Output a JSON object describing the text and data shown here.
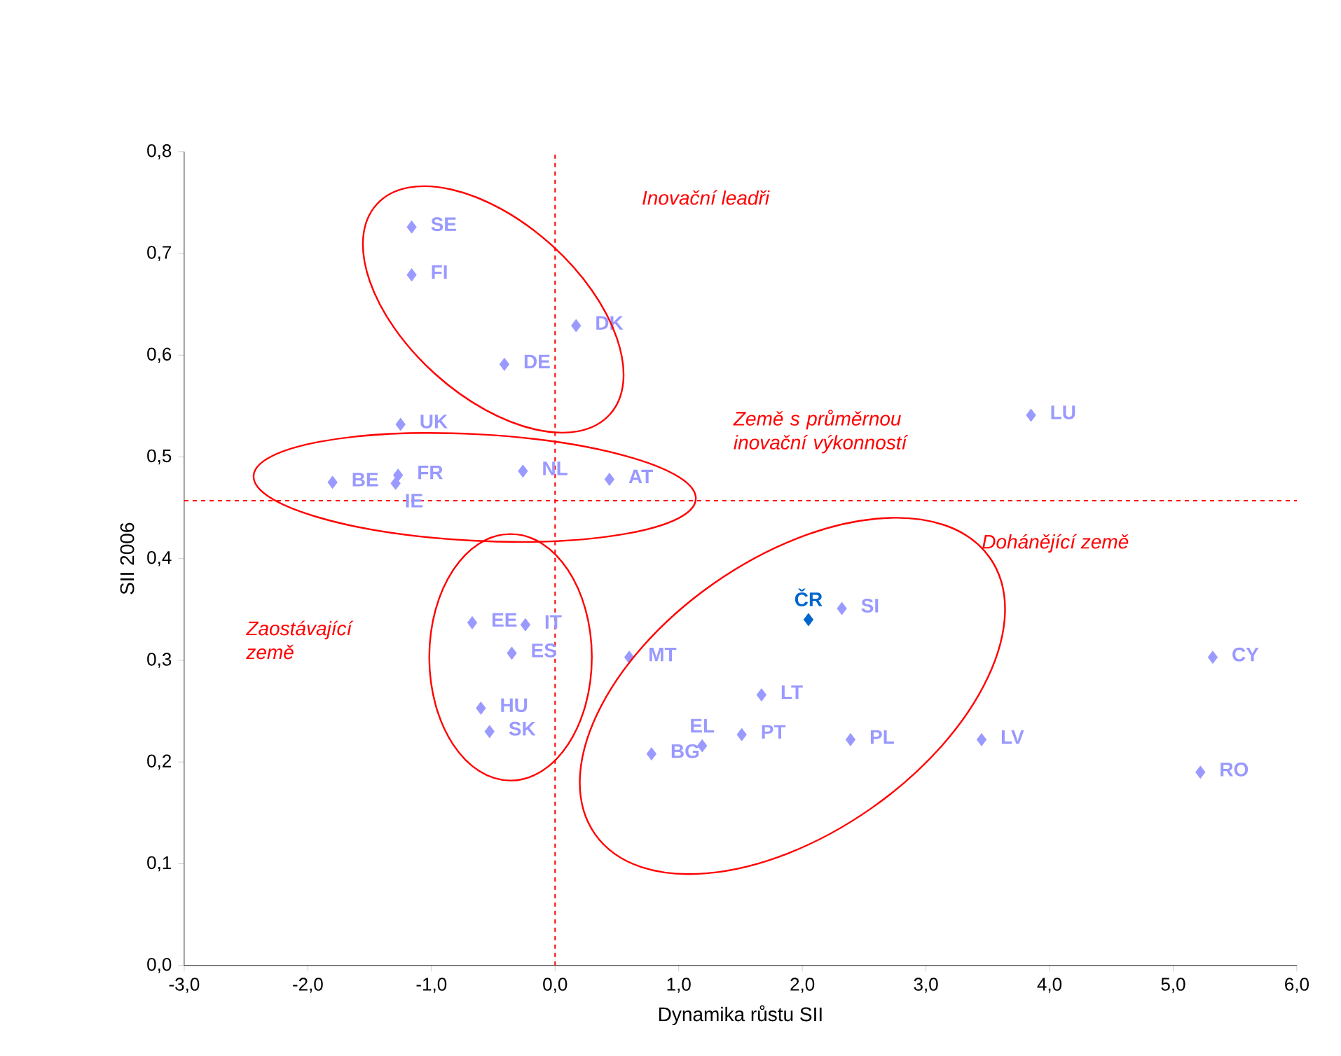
{
  "chart_data": {
    "type": "scatter",
    "xlabel": "Dynamika růstu SII",
    "ylabel": "SII 2006",
    "x": [
      -1.16,
      -1.16,
      0.17,
      -0.41,
      -1.25,
      3.85,
      -1.8,
      -1.27,
      -1.29,
      -0.26,
      0.44,
      -0.67,
      -0.24,
      -0.35,
      -0.6,
      -0.53,
      0.6,
      2.05,
      2.32,
      1.67,
      1.51,
      2.39,
      3.45,
      1.19,
      0.78,
      5.32,
      5.22
    ],
    "values": [
      0.726,
      0.679,
      0.629,
      0.591,
      0.532,
      0.541,
      0.475,
      0.482,
      0.474,
      0.486,
      0.478,
      0.337,
      0.335,
      0.307,
      0.253,
      0.23,
      0.303,
      0.34,
      0.351,
      0.266,
      0.227,
      0.222,
      0.222,
      0.216,
      0.208,
      0.303,
      0.19
    ],
    "colors": [
      "#9999ff",
      "#9999ff",
      "#9999ff",
      "#9999ff",
      "#9999ff",
      "#9999ff",
      "#9999ff",
      "#9999ff",
      "#9999ff",
      "#9999ff",
      "#9999ff",
      "#9999ff",
      "#9999ff",
      "#9999ff",
      "#9999ff",
      "#9999ff",
      "#9999ff",
      "#0066cc",
      "#9999ff",
      "#9999ff",
      "#9999ff",
      "#9999ff",
      "#9999ff",
      "#9999ff",
      "#9999ff",
      "#9999ff",
      "#9999ff"
    ],
    "marker": "diamond",
    "xlim": [
      -3,
      6
    ],
    "xticks": [
      {
        "value": -3,
        "label": "-3,0"
      },
      {
        "value": -2,
        "label": "-2,0"
      },
      {
        "value": -1,
        "label": "-1,0"
      },
      {
        "value": 0,
        "label": "0,0"
      },
      {
        "value": 1,
        "label": "1,0"
      },
      {
        "value": 2,
        "label": "2,0"
      },
      {
        "value": 3,
        "label": "3,0"
      },
      {
        "value": 4,
        "label": "4,0"
      },
      {
        "value": 5,
        "label": "5,0"
      },
      {
        "value": 6,
        "label": "6,0"
      }
    ],
    "ylim": [
      0,
      0.8
    ],
    "yticks": [
      {
        "value": 0,
        "label": "0,0"
      },
      {
        "value": 0.1,
        "label": "0,1"
      },
      {
        "value": 0.2,
        "label": "0,2"
      },
      {
        "value": 0.3,
        "label": "0,3"
      },
      {
        "value": 0.4,
        "label": "0,4"
      },
      {
        "value": 0.5,
        "label": "0,5"
      },
      {
        "value": 0.6,
        "label": "0,6"
      },
      {
        "value": 0.7,
        "label": "0,7"
      },
      {
        "value": 0.8,
        "label": "0,8"
      }
    ],
    "ref_lines": [
      {
        "axis": "x",
        "value": 0,
        "color": "#ff0000",
        "line_style": "dashed"
      },
      {
        "axis": "y",
        "value": 0.457,
        "color": "#ff0000",
        "line_style": "dashed"
      }
    ],
    "annotations": [
      {
        "text": "SE",
        "x": -1.16,
        "y": 0.726
      },
      {
        "text": "FI",
        "x": -1.16,
        "y": 0.679
      },
      {
        "text": "DK",
        "x": 0.17,
        "y": 0.629
      },
      {
        "text": "DE",
        "x": -0.41,
        "y": 0.591
      },
      {
        "text": "UK",
        "x": -1.25,
        "y": 0.532
      },
      {
        "text": "LU",
        "x": 3.85,
        "y": 0.541
      },
      {
        "text": "BE",
        "x": -1.8,
        "y": 0.475
      },
      {
        "text": "FR",
        "x": -1.27,
        "y": 0.482
      },
      {
        "text": "IE",
        "x": -1.29,
        "y": 0.474
      },
      {
        "text": "NL",
        "x": -0.26,
        "y": 0.486
      },
      {
        "text": "AT",
        "x": 0.44,
        "y": 0.478
      },
      {
        "text": "EE",
        "x": -0.67,
        "y": 0.337
      },
      {
        "text": "IT",
        "x": -0.24,
        "y": 0.335
      },
      {
        "text": "ES",
        "x": -0.35,
        "y": 0.307
      },
      {
        "text": "HU",
        "x": -0.6,
        "y": 0.253
      },
      {
        "text": "SK",
        "x": -0.53,
        "y": 0.23
      },
      {
        "text": "MT",
        "x": 0.6,
        "y": 0.303
      },
      {
        "text": "ČR",
        "x": 2.05,
        "y": 0.34
      },
      {
        "text": "SI",
        "x": 2.32,
        "y": 0.351
      },
      {
        "text": "LT",
        "x": 1.67,
        "y": 0.266
      },
      {
        "text": "PT",
        "x": 1.51,
        "y": 0.227
      },
      {
        "text": "PL",
        "x": 2.39,
        "y": 0.222
      },
      {
        "text": "LV",
        "x": 3.45,
        "y": 0.222
      },
      {
        "text": "EL",
        "x": 1.19,
        "y": 0.216
      },
      {
        "text": "BG",
        "x": 0.78,
        "y": 0.208
      },
      {
        "text": "CY",
        "x": 5.32,
        "y": 0.303
      },
      {
        "text": "RO",
        "x": 5.22,
        "y": 0.19
      },
      "Inovační leadři",
      "Země s průměrnou inovační výkonností",
      "Dohánějící země",
      "Zaostávající země"
    ]
  }
}
